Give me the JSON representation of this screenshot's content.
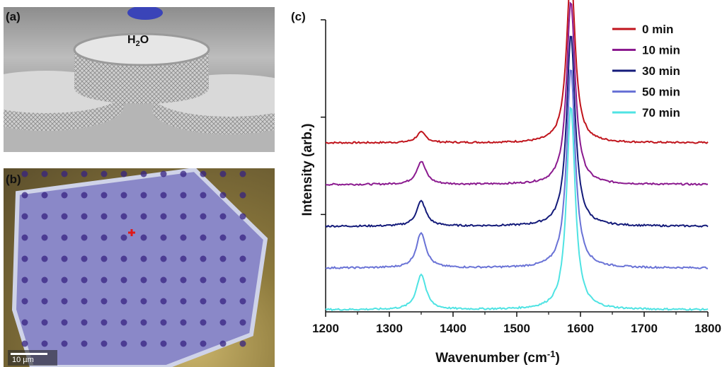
{
  "panels": {
    "a": {
      "letter": "(a)",
      "water_label": "H",
      "water_sub": "2",
      "water_suffix": "O"
    },
    "b": {
      "letter": "(b)",
      "scalebar_text": "10 µm"
    },
    "c": {
      "letter": "(c)"
    }
  },
  "chart_data": {
    "type": "line",
    "xlabel_main": "Wavenumber (cm",
    "xlabel_sup": "-1",
    "xlabel_end": ")",
    "ylabel": "Intensity (arb.)",
    "xlim": [
      1200,
      1800
    ],
    "x_ticks": [
      1200,
      1300,
      1400,
      1500,
      1600,
      1700,
      1800
    ],
    "x_tick_labels": [
      "1200",
      "1300",
      "1400",
      "1500",
      "1600",
      "1700",
      "1800"
    ],
    "y_ticks_count": 3,
    "grid": false,
    "legend_placement": "top-right",
    "peaks": {
      "D_band": 1350,
      "G_band": 1585
    },
    "series": [
      {
        "name": "0 min",
        "color": "#c0141c",
        "offset": 4,
        "d_height": 0.25,
        "g_height": 4.1
      },
      {
        "name": "10 min",
        "color": "#8b1a8f",
        "offset": 3,
        "d_height": 0.55,
        "g_height": 4.4
      },
      {
        "name": "30 min",
        "color": "#141b7a",
        "offset": 2,
        "d_height": 0.6,
        "g_height": 4.6
      },
      {
        "name": "50 min",
        "color": "#6a73d6",
        "offset": 1,
        "d_height": 0.85,
        "g_height": 4.8
      },
      {
        "name": "70 min",
        "color": "#4fe3e3",
        "offset": 0,
        "d_height": 0.85,
        "g_height": 4.9
      }
    ]
  }
}
